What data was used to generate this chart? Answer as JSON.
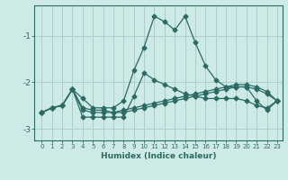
{
  "xlabel": "Humidex (Indice chaleur)",
  "x": [
    0,
    1,
    2,
    3,
    4,
    5,
    6,
    7,
    8,
    9,
    10,
    11,
    12,
    13,
    14,
    15,
    16,
    17,
    18,
    19,
    20,
    21,
    22,
    23
  ],
  "line1": [
    -2.65,
    -2.55,
    -2.5,
    -2.15,
    -2.35,
    -2.55,
    -2.55,
    -2.55,
    -2.4,
    -1.75,
    -1.25,
    -0.58,
    -0.7,
    -0.88,
    -0.58,
    -1.15,
    -1.65,
    -1.95,
    -2.1,
    -2.1,
    -2.1,
    -2.4,
    -2.6,
    -2.4
  ],
  "line2": [
    -2.65,
    -2.55,
    -2.5,
    -2.15,
    -2.75,
    -2.75,
    -2.75,
    -2.75,
    -2.75,
    -2.3,
    -1.8,
    -1.95,
    -2.05,
    -2.15,
    -2.25,
    -2.3,
    -2.35,
    -2.35,
    -2.35,
    -2.35,
    -2.4,
    -2.5,
    -2.55,
    -2.4
  ],
  "line3": [
    -2.65,
    -2.55,
    -2.5,
    -2.15,
    -2.55,
    -2.6,
    -2.6,
    -2.65,
    -2.6,
    -2.55,
    -2.5,
    -2.45,
    -2.4,
    -2.35,
    -2.3,
    -2.25,
    -2.2,
    -2.15,
    -2.1,
    -2.05,
    -2.05,
    -2.1,
    -2.2,
    -2.4
  ],
  "line4": [
    -2.65,
    -2.55,
    -2.5,
    -2.15,
    -2.6,
    -2.65,
    -2.65,
    -2.65,
    -2.65,
    -2.6,
    -2.55,
    -2.5,
    -2.45,
    -2.4,
    -2.35,
    -2.3,
    -2.25,
    -2.2,
    -2.15,
    -2.1,
    -2.1,
    -2.15,
    -2.25,
    -2.4
  ],
  "ylim": [
    -3.25,
    -0.35
  ],
  "yticks": [
    -3,
    -2,
    -1
  ],
  "bg_color": "#ceeae6",
  "grid_color": "#aecece",
  "line_color": "#2a6b65",
  "marker": "D",
  "marker_size": 2.5,
  "linewidth": 0.9
}
